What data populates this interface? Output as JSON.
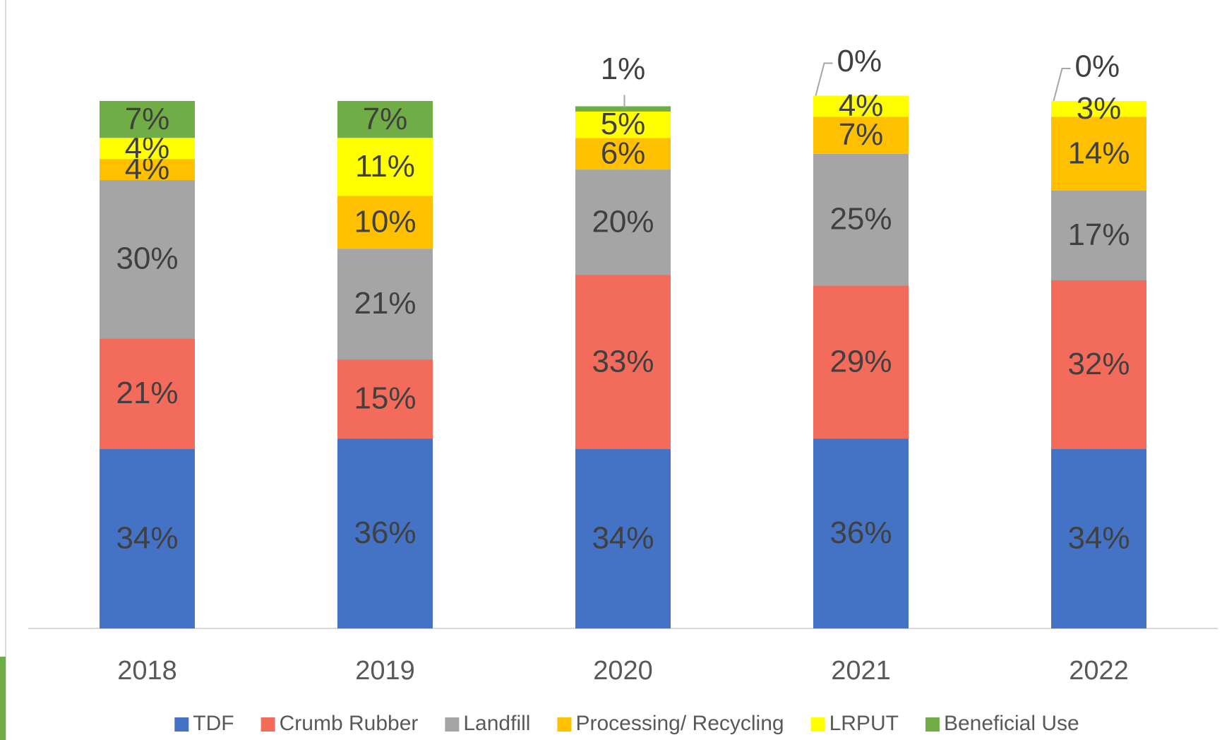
{
  "chart_data": {
    "type": "stacked_bar",
    "categories": [
      "2018",
      "2019",
      "2020",
      "2021",
      "2022"
    ],
    "series": [
      {
        "name": "TDF",
        "color": "#4472c4",
        "values": [
          34,
          36,
          34,
          36,
          34
        ],
        "value_labels": [
          "34%",
          "36%",
          "34%",
          "36%",
          "34%"
        ]
      },
      {
        "name": "Crumb Rubber",
        "color": "#f26b5b",
        "values": [
          21,
          15,
          33,
          29,
          32
        ],
        "value_labels": [
          "21%",
          "15%",
          "33%",
          "29%",
          "32%"
        ]
      },
      {
        "name": "Landfill",
        "color": "#a5a5a5",
        "values": [
          30,
          21,
          20,
          25,
          17
        ],
        "value_labels": [
          "30%",
          "21%",
          "20%",
          "25%",
          "17%"
        ]
      },
      {
        "name": "Processing/ Recycling",
        "color": "#ffc000",
        "values": [
          4,
          10,
          6,
          7,
          14
        ],
        "value_labels": [
          "4%",
          "10%",
          "6%",
          "7%",
          "14%"
        ]
      },
      {
        "name": "LRPUT",
        "color": "#ffff00",
        "values": [
          4,
          11,
          5,
          4,
          3
        ],
        "value_labels": [
          "4%",
          "11%",
          "5%",
          "4%",
          "3%"
        ]
      },
      {
        "name": "Beneficial Use",
        "color": "#70ad47",
        "values": [
          7,
          7,
          1,
          0,
          0
        ],
        "value_labels": [
          "7%",
          "7%",
          "1%",
          "0%",
          "0%"
        ]
      }
    ],
    "legend": "bottom"
  }
}
